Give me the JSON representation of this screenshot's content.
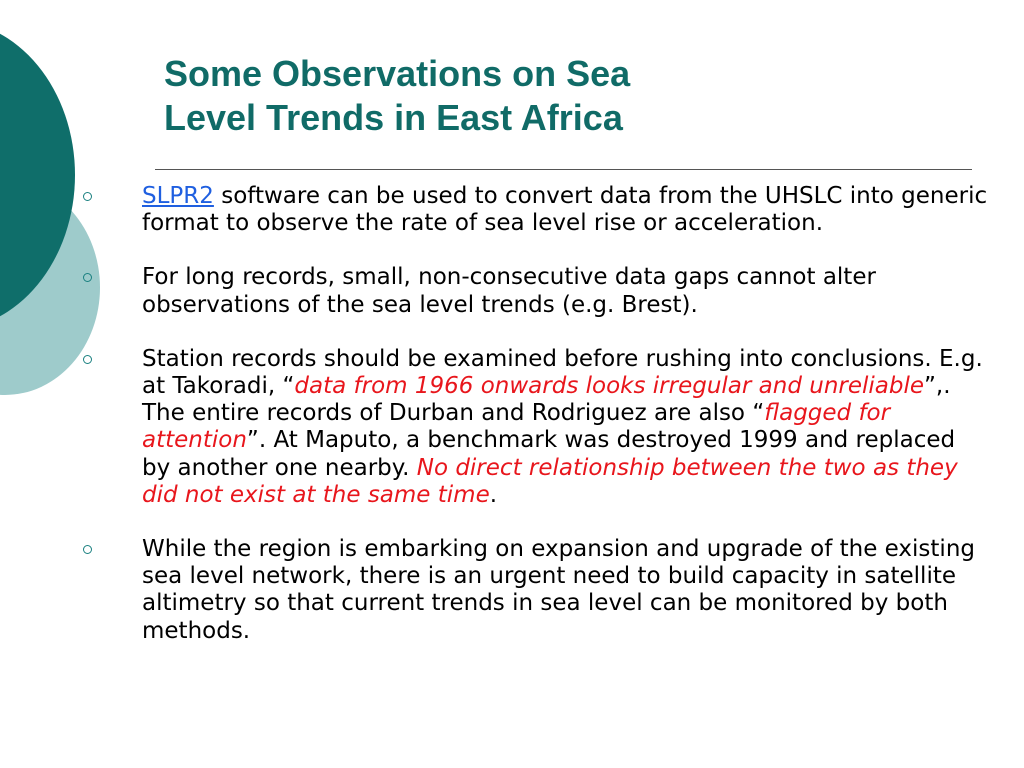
{
  "slide": {
    "title_line1": "Some Observations on Sea",
    "title_line2": "Level Trends in East Africa",
    "bullets": [
      {
        "link_text": "SLPR2",
        "text": " software can be used to convert data from the UHSLC into generic format to observe the rate of sea level rise or acceleration."
      },
      {
        "text": "For long records, small, non-consecutive data gaps cannot alter observations of the sea level trends (e.g. Brest)."
      },
      {
        "part1": "Station records should be examined before rushing into conclusions. E.g. at Takoradi, “",
        "em1": "data from 1966 onwards looks irregular and unreliable",
        "part2": "”,. The entire records of Durban and Rodriguez are also “",
        "em2": "flagged for attention",
        "part3": "”.  At Maputo, a benchmark was destroyed 1999 and replaced by another one nearby. ",
        "em3": "No direct relationship between the two as they did not exist at the same time",
        "part4": "."
      },
      {
        "text": "While the region is embarking on expansion and upgrade of the existing sea level network, there is an urgent need to build capacity in satellite altimetry so that current trends in sea level can be monitored by both methods."
      }
    ],
    "colors": {
      "title": "#106b67",
      "circle_dark": "#0f6e6a",
      "circle_light": "#9ecbcb",
      "link": "#1f5fe0",
      "emphasis": "#e8161c",
      "bullet_marker": "#1a8080"
    },
    "bullet_icon": "hollow-circle-bullet-icon"
  }
}
